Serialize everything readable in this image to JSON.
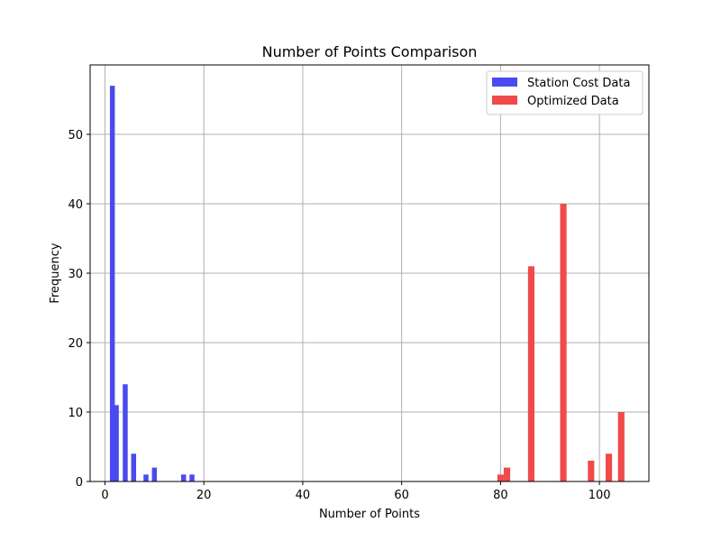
{
  "chart_data": {
    "type": "bar",
    "title": "Number of Points Comparison",
    "xlabel": "Number of Points",
    "ylabel": "Frequency",
    "xlim": [
      -3,
      110
    ],
    "ylim": [
      0,
      60
    ],
    "xticks": [
      0,
      20,
      40,
      60,
      80,
      100
    ],
    "yticks": [
      0,
      10,
      20,
      30,
      40,
      50
    ],
    "grid": true,
    "legend_position": "top-right",
    "series": [
      {
        "name": "Station Cost Data",
        "color": "#4a4af0",
        "bar_width": 1.0,
        "points": [
          {
            "x": 1.5,
            "y": 57
          },
          {
            "x": 2.3,
            "y": 11
          },
          {
            "x": 4.1,
            "y": 14
          },
          {
            "x": 5.8,
            "y": 4
          },
          {
            "x": 8.3,
            "y": 1
          },
          {
            "x": 10.0,
            "y": 2
          },
          {
            "x": 15.9,
            "y": 1
          },
          {
            "x": 17.6,
            "y": 1
          }
        ]
      },
      {
        "name": "Optimized Data",
        "color": "#f04a4a",
        "bar_width": 1.3,
        "points": [
          {
            "x": 80.0,
            "y": 1
          },
          {
            "x": 81.3,
            "y": 2
          },
          {
            "x": 86.2,
            "y": 31
          },
          {
            "x": 92.7,
            "y": 40
          },
          {
            "x": 98.3,
            "y": 3
          },
          {
            "x": 101.9,
            "y": 4
          },
          {
            "x": 104.4,
            "y": 10
          }
        ]
      }
    ]
  }
}
